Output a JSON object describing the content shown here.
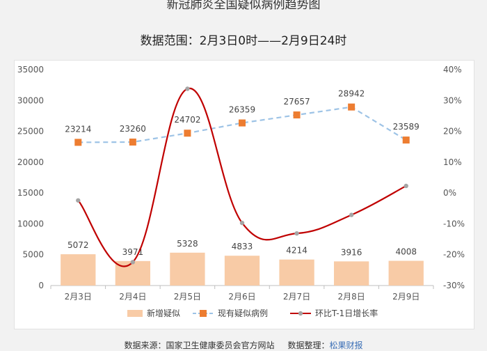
{
  "title": "新冠肺炎全国疑似病例趋势图",
  "subtitle": "数据范围：2月3日0时——2月9日24时",
  "footer": {
    "source": "数据来源：国家卫生健康委员会官方网站",
    "organizer_label": "数据整理：",
    "organizer_name": "松果财报"
  },
  "colors": {
    "bar": "#f8cba6",
    "existing": "#ed7d31",
    "existing_line": "#9dc3e6",
    "growth": "#c00000",
    "growth_marker": "#a5a5a5"
  },
  "chart_data": {
    "type": "bar+line",
    "categories": [
      "2月3日",
      "2月4日",
      "2月5日",
      "2月6日",
      "2月7日",
      "2月8日",
      "2月9日"
    ],
    "series": [
      {
        "name": "新增疑似",
        "type": "bar",
        "axis": "left",
        "values": [
          5072,
          3971,
          5328,
          4833,
          4214,
          3916,
          4008
        ],
        "labels": [
          "5072",
          "3971",
          "5328",
          "4833",
          "4214",
          "3916",
          "4008"
        ]
      },
      {
        "name": "现有疑似病例",
        "type": "line",
        "style": "dashed",
        "marker": "square",
        "axis": "left",
        "values": [
          23214,
          23260,
          24702,
          26359,
          27657,
          28942,
          23589
        ],
        "labels": [
          "23214",
          "23260",
          "24702",
          "26359",
          "27657",
          "28942",
          "23589"
        ]
      },
      {
        "name": "环比T-1日增长率",
        "type": "line",
        "style": "smooth",
        "marker": "circle",
        "axis": "right",
        "values": [
          -2.4,
          -22.4,
          33.8,
          -9.7,
          -13.1,
          -7.1,
          2.3
        ]
      }
    ],
    "y_left": {
      "min": 0,
      "max": 35000,
      "ticks": [
        "0",
        "5000",
        "10000",
        "15000",
        "20000",
        "25000",
        "30000",
        "35000"
      ]
    },
    "y_right": {
      "min": -30,
      "max": 40,
      "unit": "%",
      "ticks": [
        "-30%",
        "-20%",
        "-10%",
        "0%",
        "10%",
        "20%",
        "30%",
        "40%"
      ]
    },
    "grid": false,
    "legend_position": "bottom"
  }
}
